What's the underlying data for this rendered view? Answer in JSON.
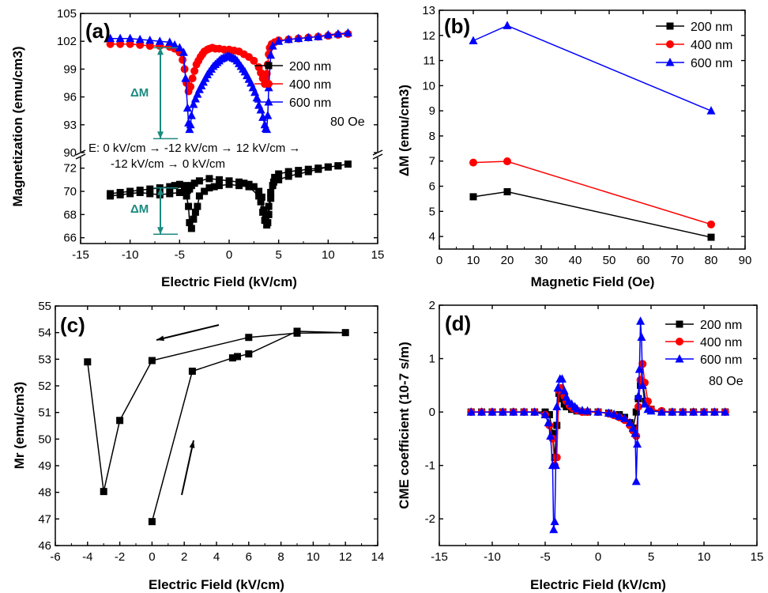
{
  "colors": {
    "s200": "#000000",
    "s400": "#ff0000",
    "s600": "#0000ff",
    "annot": "#1a8a80"
  },
  "chart_data": [
    {
      "id": "a",
      "panel_label": "(a)",
      "type": "line",
      "xlabel": "Electric Field (kV/cm)",
      "ylabel": "Magnetization (emu/cm3)",
      "xlim": [
        -15,
        15
      ],
      "xticks": [
        "-15",
        "-10",
        "-5",
        "0",
        "5",
        "10",
        "15"
      ],
      "ylim_upper": [
        90,
        105
      ],
      "yticks_upper": [
        "90",
        "93",
        "96",
        "99",
        "102",
        "105"
      ],
      "ylim_lower": [
        65.5,
        73
      ],
      "yticks_lower": [
        "66",
        "68",
        "70",
        "72"
      ],
      "axis_break": true,
      "annotations": {
        "dm_upper": "ΔM",
        "dm_lower": "ΔM",
        "sweep_line1": "E:  0 kV/cm → -12 kV/cm → 12 kV/cm →",
        "sweep_line2": "-12 kV/cm → 0 kV/cm"
      },
      "legend": {
        "entries": [
          "200 nm",
          "400 nm",
          "600 nm"
        ],
        "note": "80 Oe",
        "placement": "right"
      },
      "series": [
        {
          "name": "200 nm",
          "marker": "square",
          "color": "#000000",
          "x": [
            -12,
            -11,
            -10,
            -9,
            -8,
            -7,
            -6,
            -5.5,
            -5,
            -4.5,
            -4.3,
            -4.1,
            -4.0,
            -3.8,
            -3.6,
            -3.4,
            -3.2,
            -3.0,
            -2.5,
            -2,
            -1.5,
            -1,
            0,
            1,
            2,
            3,
            3.2,
            3.4,
            3.6,
            3.8,
            3.9,
            4.0,
            4.2,
            4.4,
            4.6,
            5,
            6,
            7,
            8,
            9,
            10,
            11,
            12,
            11,
            10,
            9,
            8,
            7,
            6,
            5,
            4.5,
            4.2,
            4.0,
            3.9,
            3.7,
            3.5,
            3.3,
            3.0,
            2.5,
            2,
            1.5,
            1,
            0,
            -1,
            -2,
            -3,
            -3.5,
            -3.8,
            -4.0,
            -4.2,
            -4.5,
            -5,
            -6,
            -7,
            -8,
            -9,
            -10,
            -11,
            -12
          ],
          "y": [
            69.8,
            69.9,
            70.0,
            70.1,
            70.2,
            70.3,
            70.4,
            70.5,
            70.6,
            70.5,
            69.6,
            68.7,
            67.3,
            66.8,
            67.6,
            68.2,
            68.7,
            69.6,
            70.0,
            70.3,
            70.4,
            70.5,
            70.6,
            70.5,
            70.4,
            69.6,
            69.1,
            68.2,
            67.5,
            67.1,
            67.3,
            68.0,
            69.4,
            70.5,
            71.2,
            71.5,
            71.7,
            71.8,
            71.9,
            72.0,
            72.1,
            72.2,
            72.35,
            72.2,
            72.1,
            71.9,
            71.7,
            71.5,
            71.3,
            71.0,
            70.8,
            69.9,
            68.7,
            68.0,
            67.8,
            68.4,
            69.5,
            70.0,
            70.4,
            70.6,
            70.7,
            70.8,
            70.9,
            71.0,
            71.1,
            70.9,
            70.7,
            70.5,
            70.2,
            70.1,
            70.0,
            69.9,
            69.8,
            69.7,
            69.8,
            69.9,
            69.8,
            69.7,
            69.6
          ]
        },
        {
          "name": "400 nm",
          "marker": "circle",
          "color": "#ff0000",
          "x": [
            -12,
            -11,
            -10,
            -9,
            -8,
            -7,
            -6,
            -5.5,
            -5,
            -4.7,
            -4.5,
            -4.3,
            -4.1,
            -3.9,
            -3.7,
            -3.5,
            -3.3,
            -3.1,
            -2.9,
            -2.7,
            -2.5,
            -2.2,
            -2,
            -1.7,
            -1.4,
            -1,
            -0.5,
            0,
            0.5,
            1,
            1.5,
            2,
            2.5,
            3,
            3.2,
            3.4,
            3.6,
            3.7,
            3.8,
            3.9,
            4.0,
            4.1,
            4.3,
            4.6,
            5,
            6,
            7,
            8,
            9,
            10,
            11,
            12
          ],
          "y": [
            101.7,
            101.7,
            101.7,
            101.6,
            101.5,
            101.5,
            101.4,
            101.2,
            100.8,
            100.0,
            99.0,
            97.5,
            96.6,
            97.1,
            98.0,
            98.8,
            99.5,
            99.9,
            100.3,
            100.6,
            100.9,
            101.1,
            101.2,
            101.3,
            101.2,
            101.2,
            101.1,
            101.1,
            101.0,
            100.9,
            100.6,
            100.3,
            99.9,
            99.2,
            98.6,
            98.0,
            97.4,
            97.8,
            98.5,
            99.5,
            100.6,
            101.3,
            101.7,
            101.9,
            102.1,
            102.2,
            102.3,
            102.4,
            102.5,
            102.6,
            102.7,
            102.8
          ]
        },
        {
          "name": "600 nm",
          "marker": "triangle",
          "color": "#0000ff",
          "x": [
            -12,
            -11,
            -10,
            -9,
            -8,
            -7,
            -6,
            -5.5,
            -5,
            -4.6,
            -4.4,
            -4.2,
            -4.1,
            -4.0,
            -3.9,
            -3.8,
            -3.6,
            -3.4,
            -3.2,
            -3.0,
            -2.8,
            -2.6,
            -2.4,
            -2.2,
            -2.0,
            -1.8,
            -1.6,
            -1.4,
            -1.2,
            -1.0,
            -0.8,
            -0.6,
            -0.4,
            -0.2,
            0,
            0.2,
            0.4,
            0.6,
            0.8,
            1.0,
            1.2,
            1.4,
            1.6,
            1.8,
            2.0,
            2.2,
            2.4,
            2.6,
            2.8,
            3.0,
            3.2,
            3.4,
            3.6,
            3.7,
            3.8,
            3.9,
            4.0,
            4.2,
            4.4,
            5,
            6,
            7,
            8,
            9,
            10,
            11,
            12
          ],
          "y": [
            102.3,
            102.3,
            102.3,
            102.2,
            102.1,
            102.0,
            101.9,
            101.6,
            101.3,
            100.8,
            98.0,
            94.8,
            93.2,
            92.5,
            93.0,
            94.0,
            95.2,
            95.8,
            96.3,
            96.8,
            97.2,
            97.6,
            98.0,
            98.4,
            98.7,
            99.0,
            99.3,
            99.5,
            99.7,
            99.9,
            100.1,
            100.2,
            100.3,
            100.4,
            100.4,
            100.3,
            100.2,
            100.1,
            99.9,
            99.6,
            99.3,
            99.0,
            98.7,
            98.3,
            97.9,
            97.5,
            97.0,
            96.5,
            95.9,
            95.1,
            94.6,
            93.8,
            93.0,
            92.6,
            92.5,
            94.0,
            97.0,
            100.5,
            101.5,
            102.0,
            102.2,
            102.3,
            102.4,
            102.5,
            102.7,
            102.8,
            102.9
          ]
        }
      ]
    },
    {
      "id": "b",
      "panel_label": "(b)",
      "type": "line",
      "xlabel": "Magnetic Field (Oe)",
      "ylabel": "ΔM (emu/cm3)",
      "xlim": [
        0,
        90
      ],
      "xticks": [
        "0",
        "10",
        "20",
        "30",
        "40",
        "50",
        "60",
        "70",
        "80",
        "90"
      ],
      "ylim": [
        3.5,
        13
      ],
      "yticks": [
        "4",
        "5",
        "6",
        "7",
        "8",
        "9",
        "10",
        "11",
        "12",
        "13"
      ],
      "legend": {
        "entries": [
          "200 nm",
          "400 nm",
          "600 nm"
        ],
        "placement": "top-right"
      },
      "series": [
        {
          "name": "200 nm",
          "marker": "square",
          "color": "#000000",
          "x": [
            10,
            20,
            80
          ],
          "y": [
            5.58,
            5.78,
            3.97
          ]
        },
        {
          "name": "400 nm",
          "marker": "circle",
          "color": "#ff0000",
          "x": [
            10,
            20,
            80
          ],
          "y": [
            6.94,
            6.99,
            4.48
          ]
        },
        {
          "name": "600 nm",
          "marker": "triangle",
          "color": "#0000ff",
          "x": [
            10,
            20,
            80
          ],
          "y": [
            11.79,
            12.39,
            9.0
          ]
        }
      ]
    },
    {
      "id": "c",
      "panel_label": "(c)",
      "type": "line",
      "xlabel": "Electric Field (kV/cm)",
      "ylabel": "Mr (emu/cm3)",
      "xlim": [
        -6,
        14
      ],
      "xticks": [
        "-6",
        "-4",
        "-2",
        "0",
        "2",
        "4",
        "6",
        "8",
        "10",
        "12",
        "14"
      ],
      "ylim": [
        46,
        55
      ],
      "yticks": [
        "46",
        "47",
        "48",
        "49",
        "50",
        "51",
        "52",
        "53",
        "54",
        "55"
      ],
      "series": [
        {
          "name": "",
          "marker": "square",
          "color": "#000000",
          "x": [
            0,
            2.5,
            5,
            5.3,
            6,
            9,
            12,
            9,
            6,
            0,
            -2,
            -3,
            -4
          ],
          "y": [
            46.9,
            52.55,
            53.05,
            53.1,
            53.2,
            54.05,
            54.0,
            53.98,
            53.82,
            52.95,
            50.7,
            48.03,
            52.9
          ]
        }
      ]
    },
    {
      "id": "d",
      "panel_label": "(d)",
      "type": "line",
      "xlabel": "Electric Field (kV/cm)",
      "ylabel": "CME coefficient (10-7 s/m)",
      "xlim": [
        -15,
        15
      ],
      "xticks": [
        "-15",
        "-10",
        "-5",
        "0",
        "5",
        "10",
        "15"
      ],
      "ylim": [
        -2.5,
        2
      ],
      "yticks": [
        "-2",
        "-1",
        "0",
        "1",
        "2"
      ],
      "legend": {
        "entries": [
          "200 nm",
          "400 nm",
          "600 nm"
        ],
        "note": "80 Oe",
        "placement": "top-right"
      },
      "series": [
        {
          "name": "200 nm",
          "marker": "square",
          "color": "#000000",
          "x": [
            -12,
            -11,
            -10,
            -9,
            -8,
            -7,
            -6,
            -5,
            -4.6,
            -4.3,
            -4.1,
            -3.9,
            -3.7,
            -3.5,
            -3.2,
            -3.0,
            -2.5,
            -2,
            -1,
            0,
            1,
            2,
            2.5,
            3,
            3.3,
            3.6,
            3.8,
            4.0,
            4.2,
            4.5,
            5,
            6,
            7,
            8,
            9,
            10,
            11,
            12
          ],
          "y": [
            0,
            0,
            0,
            0,
            0,
            0,
            0,
            0,
            -0.05,
            -0.4,
            -0.85,
            -0.25,
            0.35,
            0.25,
            0.15,
            0.1,
            0.05,
            0.02,
            0,
            0,
            -0.02,
            -0.05,
            -0.1,
            -0.2,
            -0.3,
            0,
            0.25,
            0.5,
            0.55,
            0.2,
            0.05,
            0,
            0,
            0,
            0,
            0,
            0,
            0
          ]
        },
        {
          "name": "400 nm",
          "marker": "circle",
          "color": "#ff0000",
          "x": [
            -12,
            -11,
            -10,
            -9,
            -8,
            -7,
            -6,
            -5,
            -4.6,
            -4.3,
            -4.1,
            -3.9,
            -3.7,
            -3.5,
            -3.2,
            -3.0,
            -2.7,
            -2.4,
            -2,
            -1.5,
            -1,
            0,
            1,
            1.5,
            2,
            2.5,
            3,
            3.3,
            3.6,
            3.8,
            4.0,
            4.2,
            4.4,
            4.7,
            5,
            6,
            7,
            8,
            9,
            10,
            11,
            12
          ],
          "y": [
            0,
            0,
            0,
            0,
            0,
            0,
            0,
            -0.05,
            -0.25,
            -0.5,
            -1.0,
            -0.85,
            0.4,
            0.45,
            0.3,
            0.2,
            0.12,
            0.07,
            0.03,
            0,
            0,
            0,
            -0.03,
            -0.06,
            -0.1,
            -0.15,
            -0.25,
            -0.35,
            -0.45,
            0.1,
            0.6,
            0.9,
            0.55,
            0.2,
            0.05,
            0.02,
            0,
            0,
            0,
            0,
            0,
            0
          ]
        },
        {
          "name": "600 nm",
          "marker": "triangle",
          "color": "#0000ff",
          "x": [
            -12,
            -11,
            -10,
            -9,
            -8,
            -7,
            -6,
            -5,
            -4.7,
            -4.5,
            -4.3,
            -4.2,
            -4.1,
            -4.0,
            -3.9,
            -3.8,
            -3.6,
            -3.4,
            -3.2,
            -3.0,
            -2.8,
            -2.5,
            -2.2,
            -2,
            -1.5,
            -1,
            0,
            1,
            1.5,
            2,
            2.5,
            3,
            3.3,
            3.5,
            3.6,
            3.7,
            3.8,
            3.9,
            4.0,
            4.1,
            4.2,
            4.4,
            4.7,
            5,
            6,
            7,
            8,
            9,
            10,
            11,
            12
          ],
          "y": [
            0,
            0,
            0,
            0,
            0,
            0,
            0,
            -0.05,
            -0.2,
            -0.45,
            -1.0,
            -2.2,
            -2.05,
            -1.0,
            0.1,
            0.45,
            0.62,
            0.62,
            0.4,
            0.28,
            0.2,
            0.15,
            0.1,
            0.06,
            0.03,
            0.02,
            0,
            -0.02,
            -0.04,
            -0.08,
            -0.12,
            -0.2,
            -0.3,
            -0.4,
            -1.3,
            -0.6,
            0.3,
            0.8,
            1.7,
            1.4,
            0.5,
            0.15,
            0.05,
            0.02,
            0,
            0,
            0,
            0,
            0,
            0,
            0
          ]
        }
      ]
    }
  ]
}
